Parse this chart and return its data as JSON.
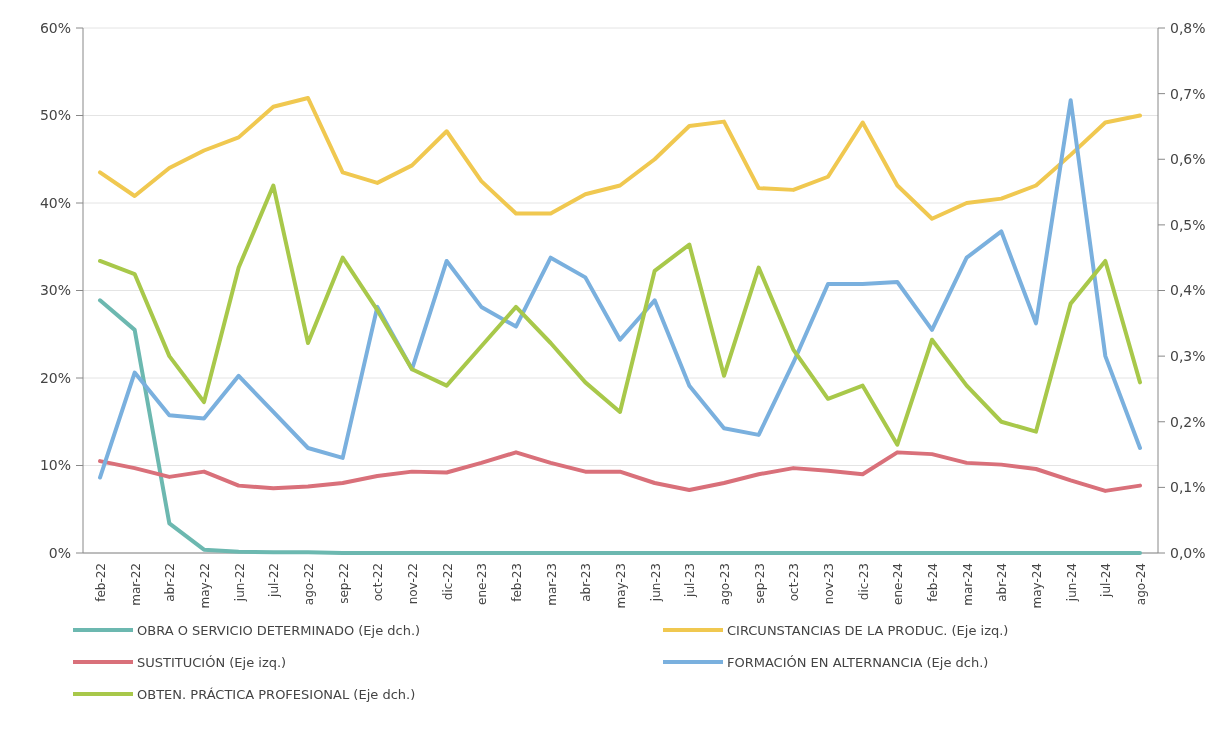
{
  "chart_data": {
    "type": "line",
    "categories": [
      "feb-22",
      "mar-22",
      "abr-22",
      "may-22",
      "jun-22",
      "jul-22",
      "ago-22",
      "sep-22",
      "oct-22",
      "nov-22",
      "dic-22",
      "ene-23",
      "feb-23",
      "mar-23",
      "abr-23",
      "may-23",
      "jun-23",
      "jul-23",
      "ago-23",
      "sep-23",
      "oct-23",
      "nov-23",
      "dic-23",
      "ene-24",
      "feb-24",
      "mar-24",
      "abr-24",
      "may-24",
      "jun-24",
      "jul-24",
      "ago-24"
    ],
    "series": [
      {
        "name": "OBRA O SERVICIO DETERMINADO (Eje dch.)",
        "color": "#6cb8b0",
        "axis": "y2",
        "values": [
          0.385,
          0.34,
          0.045,
          0.005,
          0.002,
          0.001,
          0.001,
          0,
          0,
          0,
          0,
          0,
          0,
          0,
          0,
          0,
          0,
          0,
          0,
          0,
          0,
          0,
          0,
          0,
          0,
          0,
          0,
          0,
          0,
          0,
          0
        ]
      },
      {
        "name": "CIRCUNSTANCIAS DE LA PRODUC. (Eje izq.)",
        "color": "#f0c850",
        "values": [
          43.5,
          40.8,
          44,
          46,
          47.5,
          51,
          52,
          43.5,
          42.3,
          44.3,
          48.2,
          42.5,
          38.8,
          38.8,
          41,
          42,
          45,
          48.8,
          49.3,
          41.7,
          41.5,
          43,
          49.2,
          42,
          38.2,
          40,
          40.5,
          42,
          45.5,
          49.2,
          50
        ]
      },
      {
        "name": "SUSTITUCIÓN (Eje izq.)",
        "color": "#d9707a",
        "values": [
          10.5,
          9.7,
          8.7,
          9.3,
          7.7,
          7.4,
          7.6,
          8,
          8.8,
          9.3,
          9.2,
          10.3,
          11.5,
          10.3,
          9.3,
          9.3,
          8,
          7.2,
          8,
          9,
          9.7,
          9.4,
          9,
          11.5,
          11.3,
          10.3,
          10.1,
          9.6,
          8.3,
          7.1,
          7.7
        ]
      },
      {
        "name": "FORMACIÓN EN ALTERNANCIA (Eje dch.)",
        "color": "#7ab0de",
        "axis": "y2",
        "values": [
          0.115,
          0.275,
          0.21,
          0.205,
          0.27,
          0.215,
          0.16,
          0.145,
          0.375,
          0.28,
          0.445,
          0.375,
          0.345,
          0.45,
          0.42,
          0.325,
          0.385,
          0.255,
          0.19,
          0.18,
          0.29,
          0.41,
          0.41,
          0.413,
          0.34,
          0.45,
          0.49,
          0.35,
          0.69,
          0.3,
          0.16
        ]
      },
      {
        "name": "OBTEN. PRÁCTICA PROFESIONAL (Eje dch.)",
        "color": "#a8c84a",
        "axis": "y2",
        "values": [
          0.445,
          0.425,
          0.3,
          0.23,
          0.435,
          0.56,
          0.32,
          0.45,
          0.37,
          0.28,
          0.255,
          0.315,
          0.375,
          0.32,
          0.26,
          0.215,
          0.43,
          0.47,
          0.27,
          0.435,
          0.31,
          0.235,
          0.255,
          0.165,
          0.325,
          0.255,
          0.2,
          0.185,
          0.38,
          0.445,
          0.26
        ]
      }
    ],
    "ylim": [
      0,
      60
    ],
    "yticks": [
      {
        "value": 0,
        "label": "0%"
      },
      {
        "value": 10,
        "label": "10%"
      },
      {
        "value": 20,
        "label": "20%"
      },
      {
        "value": 30,
        "label": "30%"
      },
      {
        "value": 40,
        "label": "40%"
      },
      {
        "value": 50,
        "label": "50%"
      },
      {
        "value": 60,
        "label": "60%"
      }
    ],
    "y2lim": [
      0,
      0.8
    ],
    "y2ticks": [
      {
        "value": 0,
        "label": "0,0%"
      },
      {
        "value": 0.1,
        "label": "0,1%"
      },
      {
        "value": 0.2,
        "label": "0,2%"
      },
      {
        "value": 0.3,
        "label": "0,3%"
      },
      {
        "value": 0.4,
        "label": "0,4%"
      },
      {
        "value": 0.5,
        "label": "0,5%"
      },
      {
        "value": 0.6,
        "label": "0,6%"
      },
      {
        "value": 0.7,
        "label": "0,7%"
      },
      {
        "value": 0.8,
        "label": "0,8%"
      }
    ],
    "grid": "y",
    "legend": "bottom",
    "marker": "none",
    "line_style": "solid"
  }
}
